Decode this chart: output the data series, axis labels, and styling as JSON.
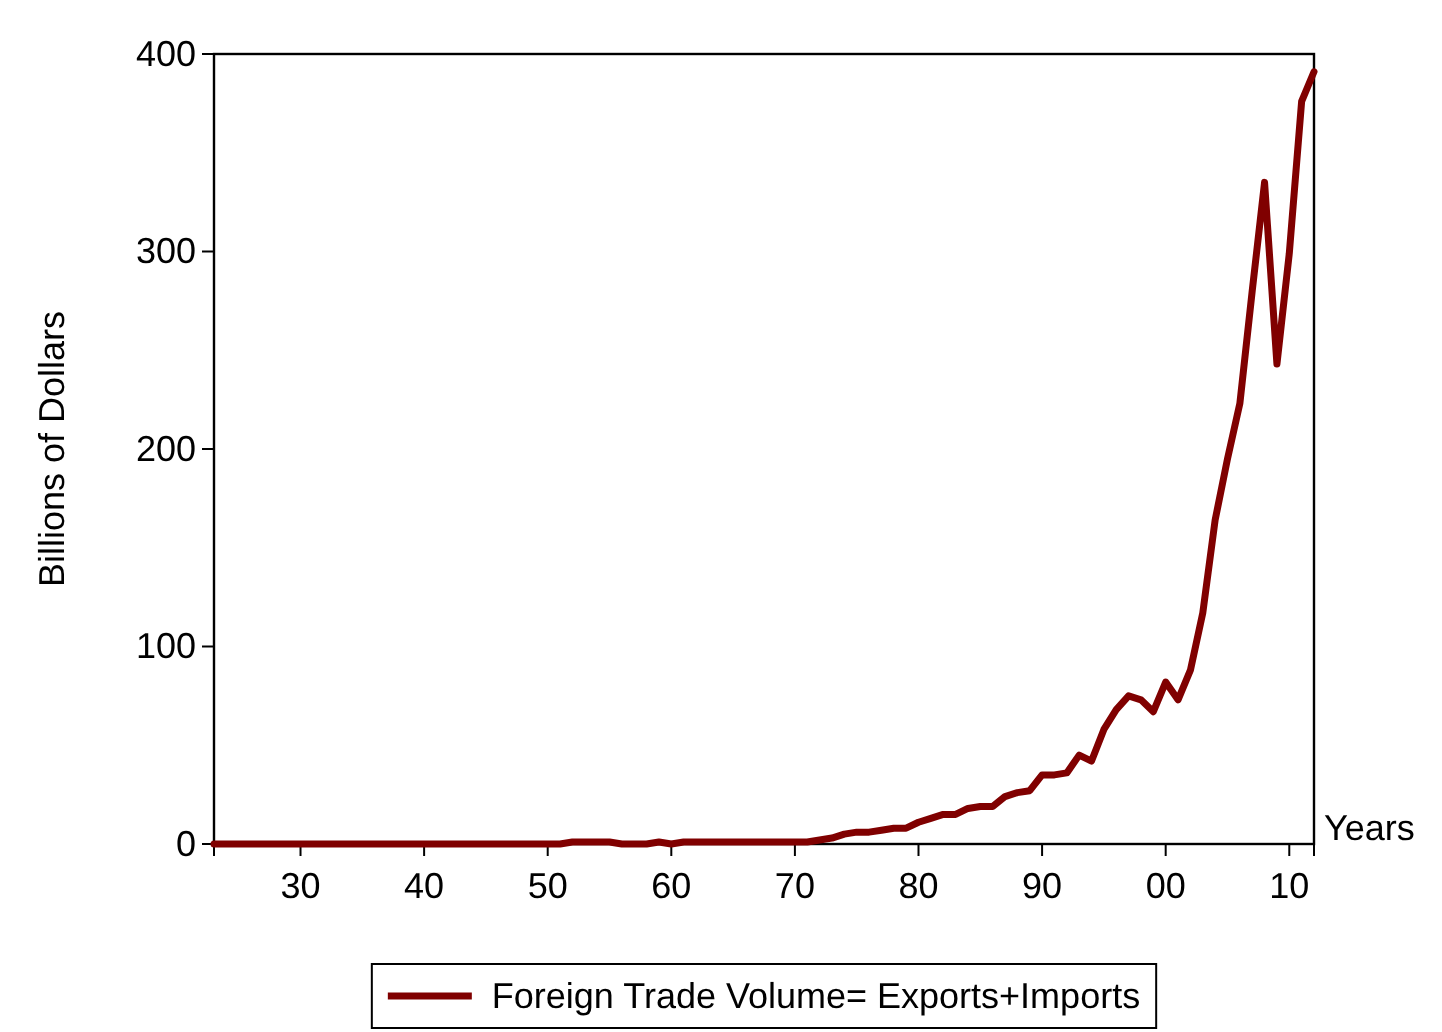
{
  "chart_data": {
    "type": "line",
    "xlabel": "Years",
    "ylabel": "Billions of Dollars",
    "x": [
      1923,
      1924,
      1925,
      1926,
      1927,
      1928,
      1929,
      1930,
      1931,
      1932,
      1933,
      1934,
      1935,
      1936,
      1937,
      1938,
      1939,
      1940,
      1941,
      1942,
      1943,
      1944,
      1945,
      1946,
      1947,
      1948,
      1949,
      1950,
      1951,
      1952,
      1953,
      1954,
      1955,
      1956,
      1957,
      1958,
      1959,
      1960,
      1961,
      1962,
      1963,
      1964,
      1965,
      1966,
      1967,
      1968,
      1969,
      1970,
      1971,
      1972,
      1973,
      1974,
      1975,
      1976,
      1977,
      1978,
      1979,
      1980,
      1981,
      1982,
      1983,
      1984,
      1985,
      1986,
      1987,
      1988,
      1989,
      1990,
      1991,
      1992,
      1993,
      1994,
      1995,
      1996,
      1997,
      1998,
      1999,
      2000,
      2001,
      2002,
      2003,
      2004,
      2005,
      2006,
      2007,
      2008,
      2009,
      2010,
      2011,
      2012
    ],
    "series": [
      {
        "name": "Foreign Trade Volume= Exports+Imports",
        "color": "#800000",
        "values": [
          0,
          0,
          0,
          0,
          0,
          0,
          0,
          0,
          0,
          0,
          0,
          0,
          0,
          0,
          0,
          0,
          0,
          0,
          0,
          0,
          0,
          0,
          0,
          0,
          0,
          0,
          0,
          0,
          0,
          1,
          1,
          1,
          1,
          0,
          0,
          0,
          1,
          0,
          1,
          1,
          1,
          1,
          1,
          1,
          1,
          1,
          1,
          1,
          1,
          2,
          3,
          5,
          6,
          6,
          7,
          8,
          8,
          11,
          13,
          15,
          15,
          18,
          19,
          19,
          24,
          26,
          27,
          35,
          35,
          36,
          45,
          42,
          58,
          68,
          75,
          73,
          67,
          82,
          73,
          88,
          117,
          164,
          195,
          223,
          280,
          335,
          243,
          299,
          376,
          391
        ]
      }
    ],
    "xlim": [
      1923,
      2012
    ],
    "xticks": [
      {
        "value": 1930,
        "label": "30"
      },
      {
        "value": 1940,
        "label": "40"
      },
      {
        "value": 1950,
        "label": "50"
      },
      {
        "value": 1960,
        "label": "60"
      },
      {
        "value": 1970,
        "label": "70"
      },
      {
        "value": 1980,
        "label": "80"
      },
      {
        "value": 1990,
        "label": "90"
      },
      {
        "value": 2000,
        "label": "00"
      },
      {
        "value": 2010,
        "label": "10"
      }
    ],
    "ylim": [
      0,
      400
    ],
    "yticks": [
      0,
      100,
      200,
      300,
      400
    ],
    "legend": "bottom",
    "line_style": "solid",
    "marker": "none",
    "grid": false
  }
}
